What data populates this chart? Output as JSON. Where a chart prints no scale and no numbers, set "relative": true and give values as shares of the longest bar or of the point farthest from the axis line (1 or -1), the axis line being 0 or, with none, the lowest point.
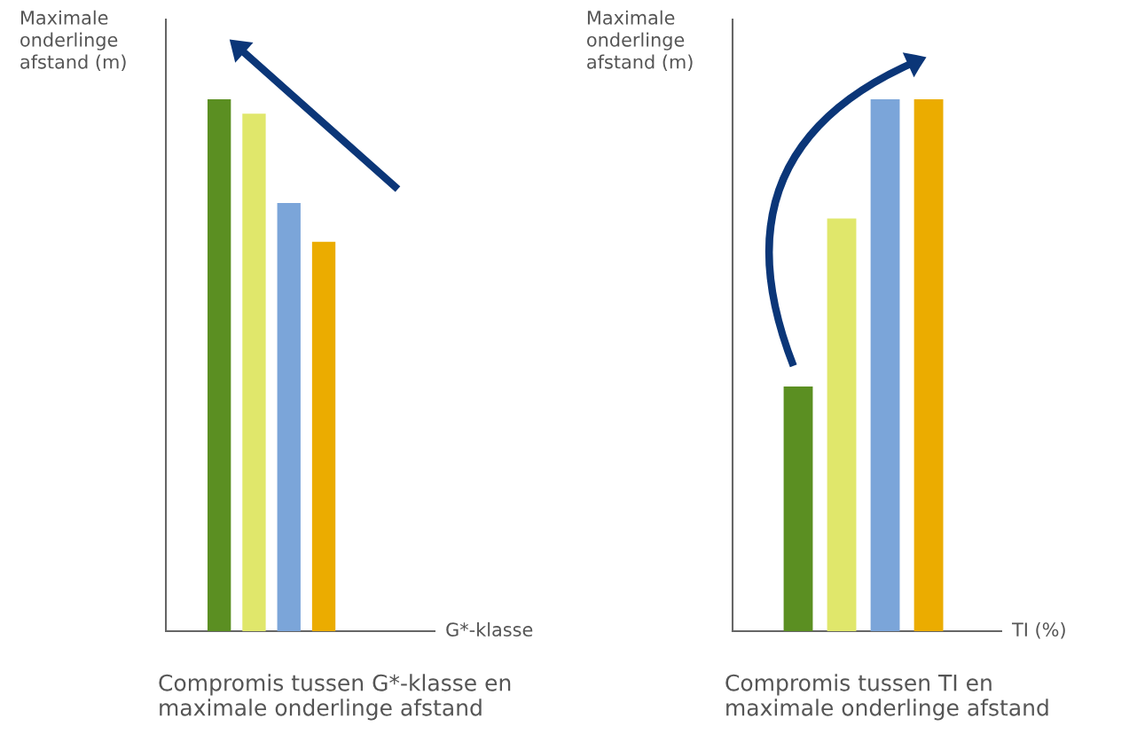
{
  "chart_data": [
    {
      "type": "bar",
      "relative": true,
      "categories": [
        null,
        null,
        null,
        null
      ],
      "values": [
        1,
        0.973,
        0.805,
        0.732
      ],
      "colors": [
        "#5b8f22",
        "#e0e76b",
        "#7ba5d9",
        "#ebac00"
      ],
      "xlabel": "G*-klasse",
      "ylabel": "Maximale\nonderlinge\nafstand (m)",
      "title": "Compromis tussen G*-klasse en maximale onderlinge afstand"
    },
    {
      "type": "bar",
      "relative": true,
      "categories": [
        null,
        null,
        null,
        null
      ],
      "values": [
        0.46,
        0.776,
        1,
        1
      ],
      "colors": [
        "#5b8f22",
        "#e0e76b",
        "#7ba5d9",
        "#ebac00"
      ],
      "xlabel": "TI (%)",
      "ylabel": "Maximale\nonderlinge\nafstand (m)",
      "title": "Compromis tussen TI en maximale onderlinge afstand"
    }
  ]
}
